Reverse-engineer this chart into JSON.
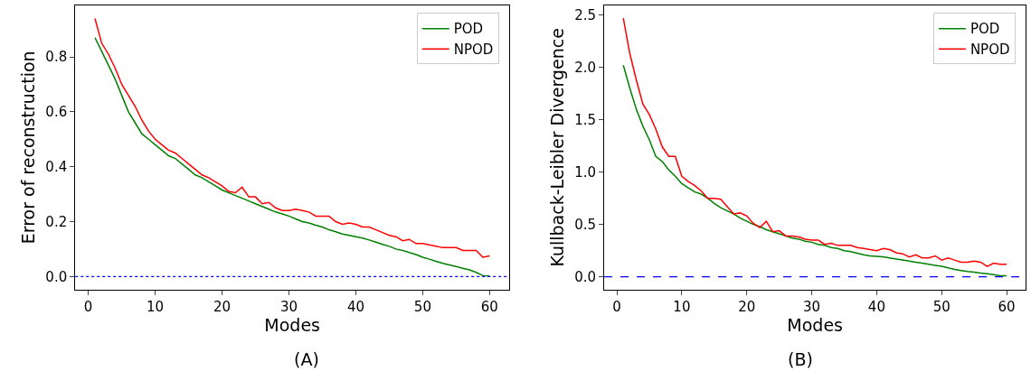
{
  "chart_data": [
    {
      "type": "line",
      "xlabel": "Modes",
      "ylabel": "Error of reconstruction",
      "annotations": [
        "(A)"
      ],
      "legend": "top right",
      "marker": "none",
      "line_style": "solid",
      "x": [
        1,
        2,
        3,
        4,
        5,
        6,
        7,
        8,
        9,
        10,
        11,
        12,
        13,
        14,
        15,
        16,
        17,
        18,
        19,
        20,
        21,
        22,
        23,
        24,
        25,
        26,
        27,
        28,
        29,
        30,
        31,
        32,
        33,
        34,
        35,
        36,
        37,
        38,
        39,
        40,
        41,
        42,
        43,
        44,
        45,
        46,
        47,
        48,
        49,
        50,
        51,
        52,
        53,
        54,
        55,
        56,
        57,
        58,
        59,
        60
      ],
      "xlim": [
        -1.95,
        62.95
      ],
      "xticks": [
        0,
        10,
        20,
        30,
        40,
        50,
        60
      ],
      "ylim": [
        -0.047,
        0.987
      ],
      "yticks": [
        {
          "value": 0,
          "label": "0.0"
        },
        0.2,
        0.4,
        0.6,
        0.8
      ],
      "ref_lines": [
        {
          "axis": "y",
          "value": 0,
          "color": "#0000ff",
          "line_style": "dotted"
        }
      ],
      "series": [
        {
          "name": "POD",
          "color": "#008000",
          "values": [
            0.87,
            0.82,
            0.77,
            0.72,
            0.66,
            0.6,
            0.56,
            0.52,
            0.5,
            0.48,
            0.46,
            0.44,
            0.43,
            0.41,
            0.39,
            0.37,
            0.36,
            0.345,
            0.33,
            0.315,
            0.305,
            0.295,
            0.285,
            0.275,
            0.265,
            0.255,
            0.245,
            0.235,
            0.228,
            0.22,
            0.21,
            0.2,
            0.195,
            0.187,
            0.18,
            0.17,
            0.163,
            0.155,
            0.15,
            0.145,
            0.14,
            0.133,
            0.125,
            0.117,
            0.11,
            0.1,
            0.095,
            0.087,
            0.08,
            0.07,
            0.063,
            0.055,
            0.048,
            0.042,
            0.036,
            0.03,
            0.024,
            0.015,
            0.003,
            0.002
          ]
        },
        {
          "name": "NPOD",
          "color": "#ff0000",
          "values": [
            0.94,
            0.85,
            0.81,
            0.76,
            0.7,
            0.66,
            0.62,
            0.57,
            0.53,
            0.5,
            0.48,
            0.46,
            0.45,
            0.43,
            0.41,
            0.39,
            0.37,
            0.36,
            0.345,
            0.33,
            0.31,
            0.305,
            0.325,
            0.29,
            0.29,
            0.265,
            0.27,
            0.25,
            0.24,
            0.24,
            0.245,
            0.24,
            0.235,
            0.22,
            0.22,
            0.22,
            0.2,
            0.19,
            0.195,
            0.19,
            0.18,
            0.18,
            0.17,
            0.16,
            0.15,
            0.145,
            0.13,
            0.135,
            0.12,
            0.12,
            0.115,
            0.11,
            0.105,
            0.105,
            0.105,
            0.095,
            0.095,
            0.095,
            0.07,
            0.075
          ]
        }
      ]
    },
    {
      "type": "line",
      "xlabel": "Modes",
      "ylabel": "Kullback-Leibler Divergence",
      "annotations": [
        "(B)"
      ],
      "legend": "top right",
      "marker": "none",
      "line_style": "solid",
      "x": [
        1,
        2,
        3,
        4,
        5,
        6,
        7,
        8,
        9,
        10,
        11,
        12,
        13,
        14,
        15,
        16,
        17,
        18,
        19,
        20,
        21,
        22,
        23,
        24,
        25,
        26,
        27,
        28,
        29,
        30,
        31,
        32,
        33,
        34,
        35,
        36,
        37,
        38,
        39,
        40,
        41,
        42,
        43,
        44,
        45,
        46,
        47,
        48,
        49,
        50,
        51,
        52,
        53,
        54,
        55,
        56,
        57,
        58,
        59,
        60
      ],
      "xlim": [
        -1.95,
        62.95
      ],
      "xticks": [
        0,
        10,
        20,
        30,
        40,
        50,
        60
      ],
      "ylim": [
        -0.12,
        2.59
      ],
      "yticks": [
        {
          "value": 0,
          "label": "0.0"
        },
        0.5,
        {
          "value": 1,
          "label": "1.0"
        },
        1.5,
        {
          "value": 2,
          "label": "2.0"
        },
        2.5
      ],
      "ref_lines": [
        {
          "axis": "y",
          "value": 0,
          "color": "#0000ff",
          "line_style": "dashed"
        }
      ],
      "series": [
        {
          "name": "POD",
          "color": "#008000",
          "values": [
            2.02,
            1.8,
            1.6,
            1.44,
            1.31,
            1.15,
            1.1,
            1.02,
            0.96,
            0.89,
            0.85,
            0.81,
            0.79,
            0.75,
            0.7,
            0.66,
            0.63,
            0.6,
            0.56,
            0.53,
            0.5,
            0.48,
            0.45,
            0.43,
            0.41,
            0.39,
            0.37,
            0.36,
            0.34,
            0.33,
            0.31,
            0.3,
            0.28,
            0.27,
            0.25,
            0.24,
            0.225,
            0.21,
            0.2,
            0.195,
            0.19,
            0.18,
            0.17,
            0.16,
            0.15,
            0.14,
            0.13,
            0.12,
            0.11,
            0.1,
            0.085,
            0.07,
            0.06,
            0.05,
            0.045,
            0.035,
            0.03,
            0.02,
            0.01,
            0.01
          ]
        },
        {
          "name": "NPOD",
          "color": "#ff0000",
          "values": [
            2.47,
            2.13,
            1.88,
            1.65,
            1.55,
            1.41,
            1.24,
            1.15,
            1.15,
            0.96,
            0.91,
            0.87,
            0.82,
            0.75,
            0.75,
            0.74,
            0.67,
            0.6,
            0.61,
            0.58,
            0.51,
            0.47,
            0.53,
            0.43,
            0.44,
            0.39,
            0.39,
            0.38,
            0.36,
            0.35,
            0.35,
            0.31,
            0.32,
            0.3,
            0.3,
            0.3,
            0.28,
            0.27,
            0.26,
            0.25,
            0.27,
            0.26,
            0.23,
            0.22,
            0.19,
            0.21,
            0.18,
            0.18,
            0.2,
            0.16,
            0.18,
            0.16,
            0.14,
            0.14,
            0.15,
            0.14,
            0.1,
            0.13,
            0.12,
            0.12
          ]
        }
      ]
    }
  ]
}
